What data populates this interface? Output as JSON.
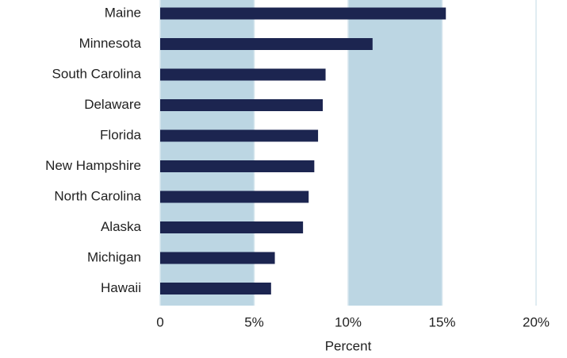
{
  "chart_data": {
    "type": "barh",
    "categories": [
      "Maine",
      "Minnesota",
      "South Carolina",
      "Delaware",
      "Florida",
      "New Hampshire",
      "North Carolina",
      "Alaska",
      "Michigan",
      "Hawaii"
    ],
    "values": [
      15.2,
      11.3,
      8.8,
      8.65,
      8.4,
      8.2,
      7.9,
      7.6,
      6.1,
      5.9
    ],
    "color": "#1c2550",
    "xlabel": "Percent",
    "xlim": [
      0,
      20
    ],
    "xticks": [
      0,
      {
        "value": 5,
        "label": "5%"
      },
      {
        "value": 10,
        "label": "10%"
      },
      {
        "value": 15,
        "label": "15%"
      },
      {
        "value": 20,
        "label": "20%"
      }
    ],
    "shaded_bands": [
      [
        0,
        5
      ],
      [
        10,
        15
      ]
    ],
    "band_color": "#bcd6e3"
  }
}
